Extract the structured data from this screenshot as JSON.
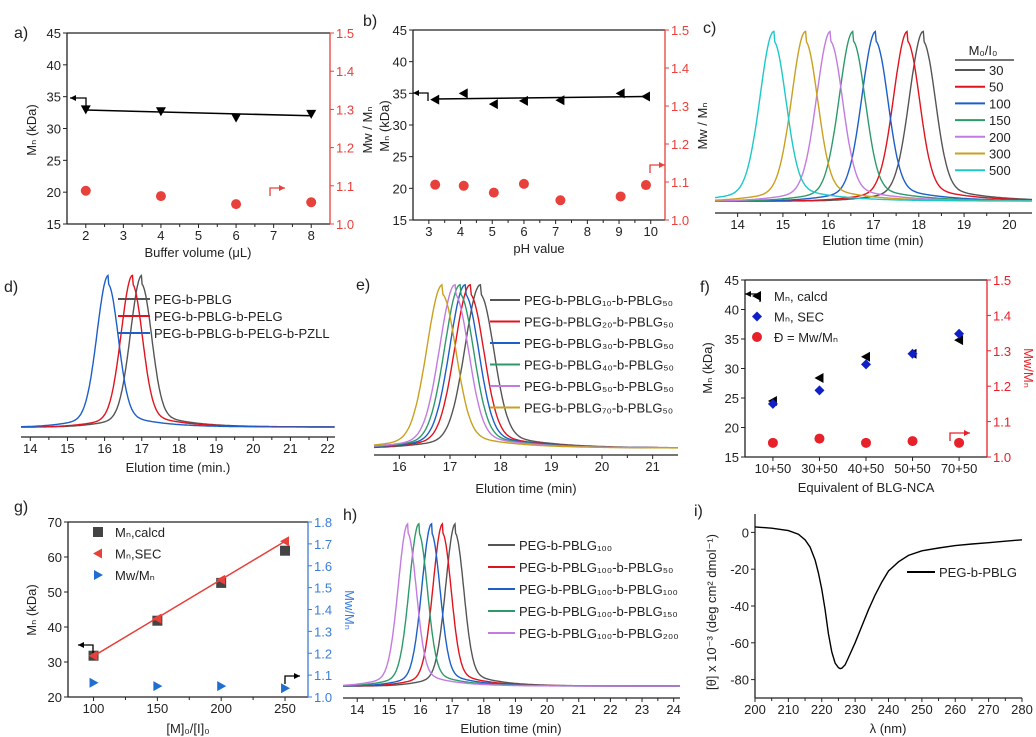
{
  "chart_data": [
    {
      "panel_label": "a)",
      "type": "scatter",
      "xlabel": "Buffer volume (μL)",
      "ylabel": "Mₙ (kDa)",
      "y2label": "Mw / Mₙ",
      "xlim": [
        1.5,
        8.5
      ],
      "xticks": [
        2,
        3,
        4,
        5,
        6,
        7,
        8
      ],
      "ylim": [
        15,
        45
      ],
      "yticks": [
        15,
        20,
        25,
        30,
        35,
        40,
        45
      ],
      "y2lim": [
        1.0,
        1.5
      ],
      "y2ticks": [
        "1.0",
        "1.1",
        "1.2",
        "1.3",
        "1.4",
        "1.5"
      ],
      "y2color": "#e8403a",
      "y2label_color": "#222222",
      "series": [
        {
          "axis": "left",
          "marker": "triangle-down",
          "color": "#000000",
          "x": [
            2,
            4,
            6,
            8
          ],
          "y": [
            33.0,
            32.7,
            31.7,
            32.3
          ],
          "fit_line": {
            "x": [
              2,
              8
            ],
            "y": [
              32.9,
              32.0
            ]
          }
        },
        {
          "axis": "right",
          "marker": "circle",
          "color": "#e8403a",
          "x": [
            2,
            4,
            6,
            8
          ],
          "y": [
            1.087,
            1.073,
            1.052,
            1.057
          ]
        }
      ]
    },
    {
      "panel_label": "b)",
      "type": "scatter",
      "xlabel": "pH value",
      "ylabel": "Mₙ (kDa)",
      "y2label": "Mw / Mₙ",
      "xlim": [
        2.5,
        10.45
      ],
      "xticks": [
        3,
        4,
        5,
        6,
        7,
        8,
        9,
        10
      ],
      "ylim": [
        15,
        45
      ],
      "yticks": [
        15,
        20,
        25,
        30,
        35,
        40,
        45
      ],
      "y2lim": [
        1.0,
        1.5
      ],
      "y2ticks": [
        "1.0",
        "1.1",
        "1.2",
        "1.3",
        "1.4",
        "1.5"
      ],
      "y2color": "#e8403a",
      "y2label_color": "#222222",
      "series": [
        {
          "axis": "left",
          "marker": "triangle-left",
          "color": "#000000",
          "x": [
            3.2,
            4.1,
            5.05,
            6.0,
            7.15,
            9.05,
            9.85
          ],
          "y": [
            34.0,
            35.0,
            33.3,
            33.8,
            33.9,
            35.0,
            34.5
          ],
          "fit_line": {
            "x": [
              3.2,
              9.85
            ],
            "y": [
              34.1,
              34.5
            ]
          }
        },
        {
          "axis": "right",
          "marker": "circle",
          "color": "#e8403a",
          "x": [
            3.2,
            4.1,
            5.05,
            6.0,
            7.15,
            9.05,
            9.85
          ],
          "y": [
            1.093,
            1.09,
            1.072,
            1.095,
            1.052,
            1.062,
            1.092
          ]
        }
      ]
    },
    {
      "panel_label": "c)",
      "type": "line",
      "xlabel": "Elution time (min)",
      "xlim": [
        13.5,
        20.5
      ],
      "xticks": [
        14,
        15,
        16,
        17,
        18,
        19,
        20
      ],
      "legend_title": "M₀/I₀",
      "series": [
        {
          "name": "30",
          "color": "#555555",
          "peak": 18.1
        },
        {
          "name": "50",
          "color": "#e0141e",
          "peak": 17.75
        },
        {
          "name": "100",
          "color": "#1c5fc8",
          "peak": 17.05
        },
        {
          "name": "150",
          "color": "#2e9a6a",
          "peak": 16.55
        },
        {
          "name": "200",
          "color": "#c27be0",
          "peak": 16.05
        },
        {
          "name": "300",
          "color": "#c9a020",
          "peak": 15.5
        },
        {
          "name": "500",
          "color": "#1ec8c8",
          "peak": 14.8
        }
      ]
    },
    {
      "panel_label": "d)",
      "type": "line",
      "xlabel": "Elution time (min.)",
      "xlim": [
        13.75,
        22.2
      ],
      "xticks": [
        14,
        15,
        16,
        17,
        18,
        19,
        20,
        21,
        22
      ],
      "series": [
        {
          "name": "PEG-b-PBLG",
          "color": "#555555",
          "peak": 17.0
        },
        {
          "name": "PEG-b-PBLG-b-PELG",
          "color": "#e0141e",
          "peak": 16.75
        },
        {
          "name": "PEG-b-PBLG-b-PELG-b-PZLL",
          "color": "#1c5fc8",
          "peak": 16.1
        }
      ]
    },
    {
      "panel_label": "e)",
      "type": "line",
      "xlabel": "Elution time (min)",
      "xlim": [
        15.5,
        21.5
      ],
      "xticks": [
        16,
        17,
        18,
        19,
        20,
        21
      ],
      "series": [
        {
          "name": "PEG-b-PBLG₁₀-b-PBLG₅₀",
          "color": "#555555",
          "peak": 17.6
        },
        {
          "name": "PEG-b-PBLG₂₀-b-PBLG₅₀",
          "color": "#e0141e",
          "peak": 17.4
        },
        {
          "name": "PEG-b-PBLG₃₀-b-PBLG₅₀",
          "color": "#1c5fc8",
          "peak": 17.3
        },
        {
          "name": "PEG-b-PBLG₄₀-b-PBLG₅₀",
          "color": "#2e9a6a",
          "peak": 17.2
        },
        {
          "name": "PEG-b-PBLG₅₀-b-PBLG₅₀",
          "color": "#c27be0",
          "peak": 17.1
        },
        {
          "name": "PEG-b-PBLG₇₀-b-PBLG₅₀",
          "color": "#c9a020",
          "peak": 16.85
        }
      ]
    },
    {
      "panel_label": "f)",
      "type": "scatter",
      "xlabel": "Equivalent of BLG-NCA",
      "ylabel": "Mₙ (kDa)",
      "y2label": "Mw/Mₙ",
      "categories": [
        "10+50",
        "30+50",
        "40+50",
        "50+50",
        "70+50"
      ],
      "ylim": [
        15,
        45
      ],
      "yticks": [
        15,
        20,
        25,
        30,
        35,
        40,
        45
      ],
      "y2lim": [
        1.0,
        1.5
      ],
      "y2ticks": [
        "1.0",
        "1.1",
        "1.2",
        "1.3",
        "1.4",
        "1.5"
      ],
      "y2color": "#e8202a",
      "y2label_color": "#e8202a",
      "series": [
        {
          "name": "Mₙ, calcd",
          "axis": "left",
          "marker": "triangle-left",
          "color": "#000000",
          "y": [
            24.5,
            28.4,
            32.0,
            32.5,
            34.8
          ]
        },
        {
          "name": "Mₙ, SEC",
          "axis": "left",
          "marker": "diamond",
          "color": "#1020c8",
          "y": [
            24.0,
            26.3,
            30.7,
            32.5,
            35.9
          ]
        },
        {
          "name": "Đ = Mw/Mₙ",
          "axis": "right",
          "marker": "circle",
          "color": "#e8202a",
          "y": [
            1.04,
            1.052,
            1.04,
            1.045,
            1.04
          ]
        }
      ]
    },
    {
      "panel_label": "g)",
      "type": "scatter",
      "xlabel": "[M]₀/[I]₀",
      "ylabel": "Mₙ (kDa)",
      "y2label": "Mw/Mₙ",
      "xlim": [
        80,
        268
      ],
      "xticks": [
        100,
        150,
        200,
        250
      ],
      "ylim": [
        20,
        70
      ],
      "yticks": [
        20,
        30,
        40,
        50,
        60,
        70
      ],
      "y2lim": [
        1.0,
        1.8
      ],
      "y2ticks": [
        "1.0",
        "1.1",
        "1.2",
        "1.3",
        "1.4",
        "1.5",
        "1.6",
        "1.7",
        "1.8"
      ],
      "y2color": "#3b7dd8",
      "y2label_color": "#3b7dd8",
      "series": [
        {
          "name": "Mₙ,calcd",
          "axis": "left",
          "marker": "square",
          "color": "#444444",
          "x": [
            100,
            150,
            200,
            250
          ],
          "y": [
            31.8,
            41.8,
            52.6,
            61.8
          ]
        },
        {
          "name": "Mₙ,SEC",
          "axis": "left",
          "marker": "triangle-left",
          "color": "#e8403a",
          "x": [
            100,
            150,
            200,
            250
          ],
          "y": [
            31.8,
            42.4,
            53.5,
            64.5
          ],
          "fit_line": {
            "x": [
              100,
              250
            ],
            "y": [
              31.7,
              64.5
            ]
          }
        },
        {
          "name": "Mw/Mₙ",
          "axis": "right",
          "marker": "triangle-right",
          "color": "#1f6fd0",
          "x": [
            100,
            150,
            200,
            250
          ],
          "y": [
            1.065,
            1.05,
            1.05,
            1.04
          ]
        }
      ]
    },
    {
      "panel_label": "h)",
      "type": "line",
      "xlabel": "Elution time (min)",
      "xlim": [
        13.55,
        24.2
      ],
      "xticks": [
        14,
        15,
        16,
        17,
        18,
        19,
        20,
        21,
        22,
        23,
        24
      ],
      "series": [
        {
          "name": "PEG-b-PBLG₁₀₀",
          "color": "#555555",
          "peak": 17.1
        },
        {
          "name": "PEG-b-PBLG₁₀₀-b-PBLG₅₀",
          "color": "#e0141e",
          "peak": 16.7
        },
        {
          "name": "PEG-b-PBLG₁₀₀-b-PBLG₁₀₀",
          "color": "#1c5fc8",
          "peak": 16.35
        },
        {
          "name": "PEG-b-PBLG₁₀₀-b-PBLG₁₅₀",
          "color": "#2e9a6a",
          "peak": 15.95
        },
        {
          "name": "PEG-b-PBLG₁₀₀-b-PBLG₂₀₀",
          "color": "#c27be0",
          "peak": 15.6
        }
      ]
    },
    {
      "panel_label": "i)",
      "type": "line",
      "xlabel": "λ (nm)",
      "ylabel": "[θ] x 10⁻³ (deg cm² dmol⁻¹)",
      "xlim": [
        200,
        280
      ],
      "xticks": [
        200,
        210,
        220,
        230,
        240,
        250,
        260,
        270,
        280
      ],
      "ylim": [
        -90,
        10
      ],
      "yticks": [
        0,
        -20,
        -40,
        -60,
        -80
      ],
      "series": [
        {
          "name": "PEG-b-PBLG",
          "color": "#000000",
          "x": [
            200,
            205,
            210,
            213,
            215,
            216.5,
            218,
            219,
            220,
            221,
            222,
            223,
            224,
            225,
            225.5,
            226,
            227,
            228,
            230,
            232,
            234,
            236,
            238,
            240,
            243,
            246,
            250,
            255,
            260,
            265,
            270,
            275,
            280
          ],
          "y": [
            3,
            2.3,
            1,
            -1,
            -4,
            -8,
            -15,
            -22,
            -31,
            -42,
            -55,
            -65,
            -71,
            -73.5,
            -74,
            -73.8,
            -72,
            -68,
            -60,
            -51,
            -42,
            -34,
            -27,
            -21,
            -16,
            -12.5,
            -10,
            -8.5,
            -7.2,
            -6.3,
            -5.6,
            -4.8,
            -4
          ]
        }
      ]
    }
  ]
}
